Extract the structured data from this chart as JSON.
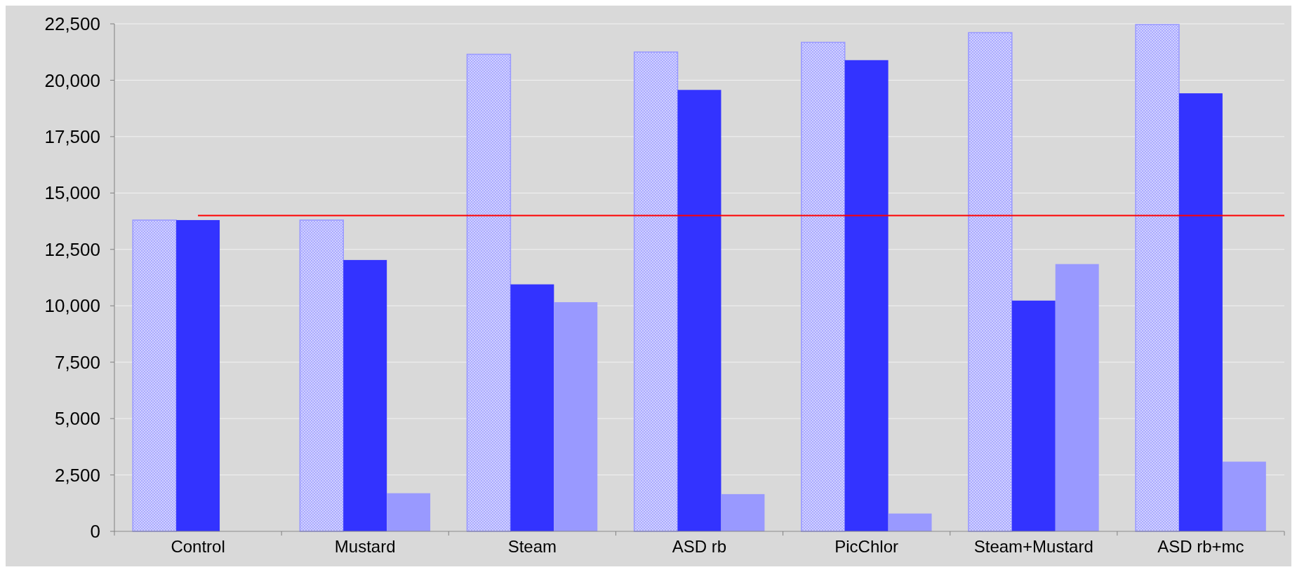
{
  "chart_data": {
    "type": "bar",
    "categories": [
      "Control",
      "Mustard",
      "Steam",
      "ASD rb",
      "PicChlor",
      "Steam+Mustard",
      "ASD rb+mc"
    ],
    "series": [
      {
        "color": "#9999ff",
        "values": [
          13800,
          13800,
          21150,
          21250,
          21680,
          22110,
          22470
        ]
      },
      {
        "color": "#3333ff",
        "values": [
          13800,
          12030,
          10950,
          19570,
          20890,
          10230,
          19420
        ]
      },
      {
        "color": "#9999ff",
        "values": [
          null,
          1690,
          10160,
          1650,
          790,
          11850,
          3090
        ]
      }
    ],
    "ylim": [
      0,
      22500
    ],
    "yticks": [
      {
        "value": 0,
        "label": "0"
      },
      {
        "value": 2500,
        "label": "2,500"
      },
      {
        "value": 5000,
        "label": "5,000"
      },
      {
        "value": 7500,
        "label": "7,500"
      },
      {
        "value": 10000,
        "label": "10,000"
      },
      {
        "value": 12500,
        "label": "12,500"
      },
      {
        "value": 15000,
        "label": "15,000"
      },
      {
        "value": 17500,
        "label": "17,500"
      },
      {
        "value": 20000,
        "label": "20,000"
      },
      {
        "value": 22500,
        "label": "22,500"
      }
    ],
    "grid": "y",
    "ref_lines": [
      {
        "axis": "y",
        "value": 14000,
        "color": "#ff0000"
      }
    ]
  }
}
